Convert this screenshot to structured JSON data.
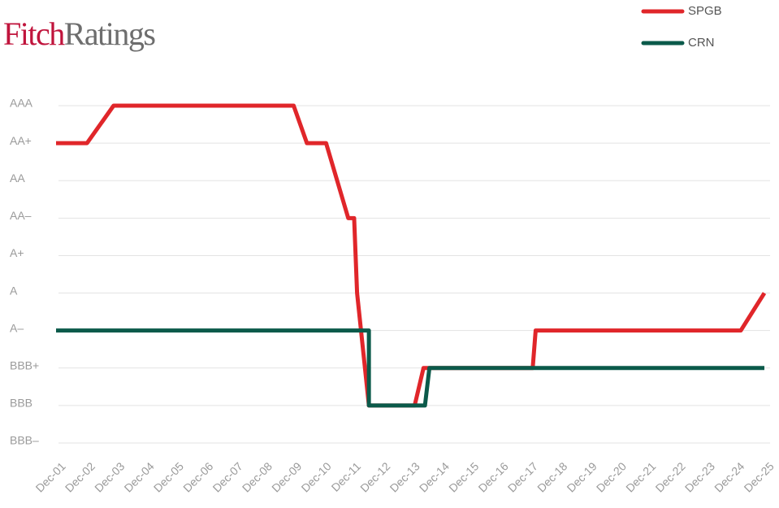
{
  "logo_text": [
    "Fitch",
    "Ratings"
  ],
  "chart_data": {
    "type": "line",
    "legend": "top-right",
    "grid": true,
    "xlim": [
      0,
      24
    ],
    "xticks": [
      {
        "value": 0,
        "label": "Dec-01"
      },
      {
        "value": 1,
        "label": "Dec-02"
      },
      {
        "value": 2,
        "label": "Dec-03"
      },
      {
        "value": 3,
        "label": "Dec-04"
      },
      {
        "value": 4,
        "label": "Dec-05"
      },
      {
        "value": 5,
        "label": "Dec-06"
      },
      {
        "value": 6,
        "label": "Dec-07"
      },
      {
        "value": 7,
        "label": "Dec-08"
      },
      {
        "value": 8,
        "label": "Dec-09"
      },
      {
        "value": 9,
        "label": "Dec-10"
      },
      {
        "value": 10,
        "label": "Dec-11"
      },
      {
        "value": 11,
        "label": "Dec-12"
      },
      {
        "value": 12,
        "label": "Dec-13"
      },
      {
        "value": 13,
        "label": "Dec-14"
      },
      {
        "value": 14,
        "label": "Dec-15"
      },
      {
        "value": 15,
        "label": "Dec-16"
      },
      {
        "value": 16,
        "label": "Dec-17"
      },
      {
        "value": 17,
        "label": "Dec-18"
      },
      {
        "value": 18,
        "label": "Dec-19"
      },
      {
        "value": 19,
        "label": "Dec-20"
      },
      {
        "value": 20,
        "label": "Dec-21"
      },
      {
        "value": 21,
        "label": "Dec-22"
      },
      {
        "value": 22,
        "label": "Dec-23"
      },
      {
        "value": 23,
        "label": "Dec-24"
      },
      {
        "value": 24,
        "label": "Dec-25"
      }
    ],
    "ylim": [
      0,
      9
    ],
    "yticks": [
      {
        "value": 9,
        "label": "AAA"
      },
      {
        "value": 8,
        "label": "AA+"
      },
      {
        "value": 7,
        "label": "AA"
      },
      {
        "value": 6,
        "label": "AA–"
      },
      {
        "value": 5,
        "label": "A+"
      },
      {
        "value": 4,
        "label": "A"
      },
      {
        "value": 3,
        "label": "A–"
      },
      {
        "value": 2,
        "label": "BBB+"
      },
      {
        "value": 1,
        "label": "BBB"
      },
      {
        "value": 0,
        "label": "BBB–"
      }
    ],
    "series": [
      {
        "name": "SPGB",
        "color": "#e0262a",
        "x": [
          0,
          1.05,
          1.95,
          8.05,
          8.5,
          9.15,
          9.9,
          10.1,
          10.2,
          10.6,
          12.15,
          12.45,
          16.15,
          16.25,
          23.2,
          24
        ],
        "values": [
          8,
          8,
          9,
          9,
          8,
          8,
          6,
          6,
          4,
          1,
          1,
          2,
          2,
          3,
          3,
          4
        ]
      },
      {
        "name": "CRN",
        "color": "#0b5a4a",
        "x": [
          0,
          10.6,
          10.6,
          12.5,
          12.65,
          24
        ],
        "values": [
          3,
          3,
          1,
          1,
          2,
          2
        ]
      }
    ]
  }
}
